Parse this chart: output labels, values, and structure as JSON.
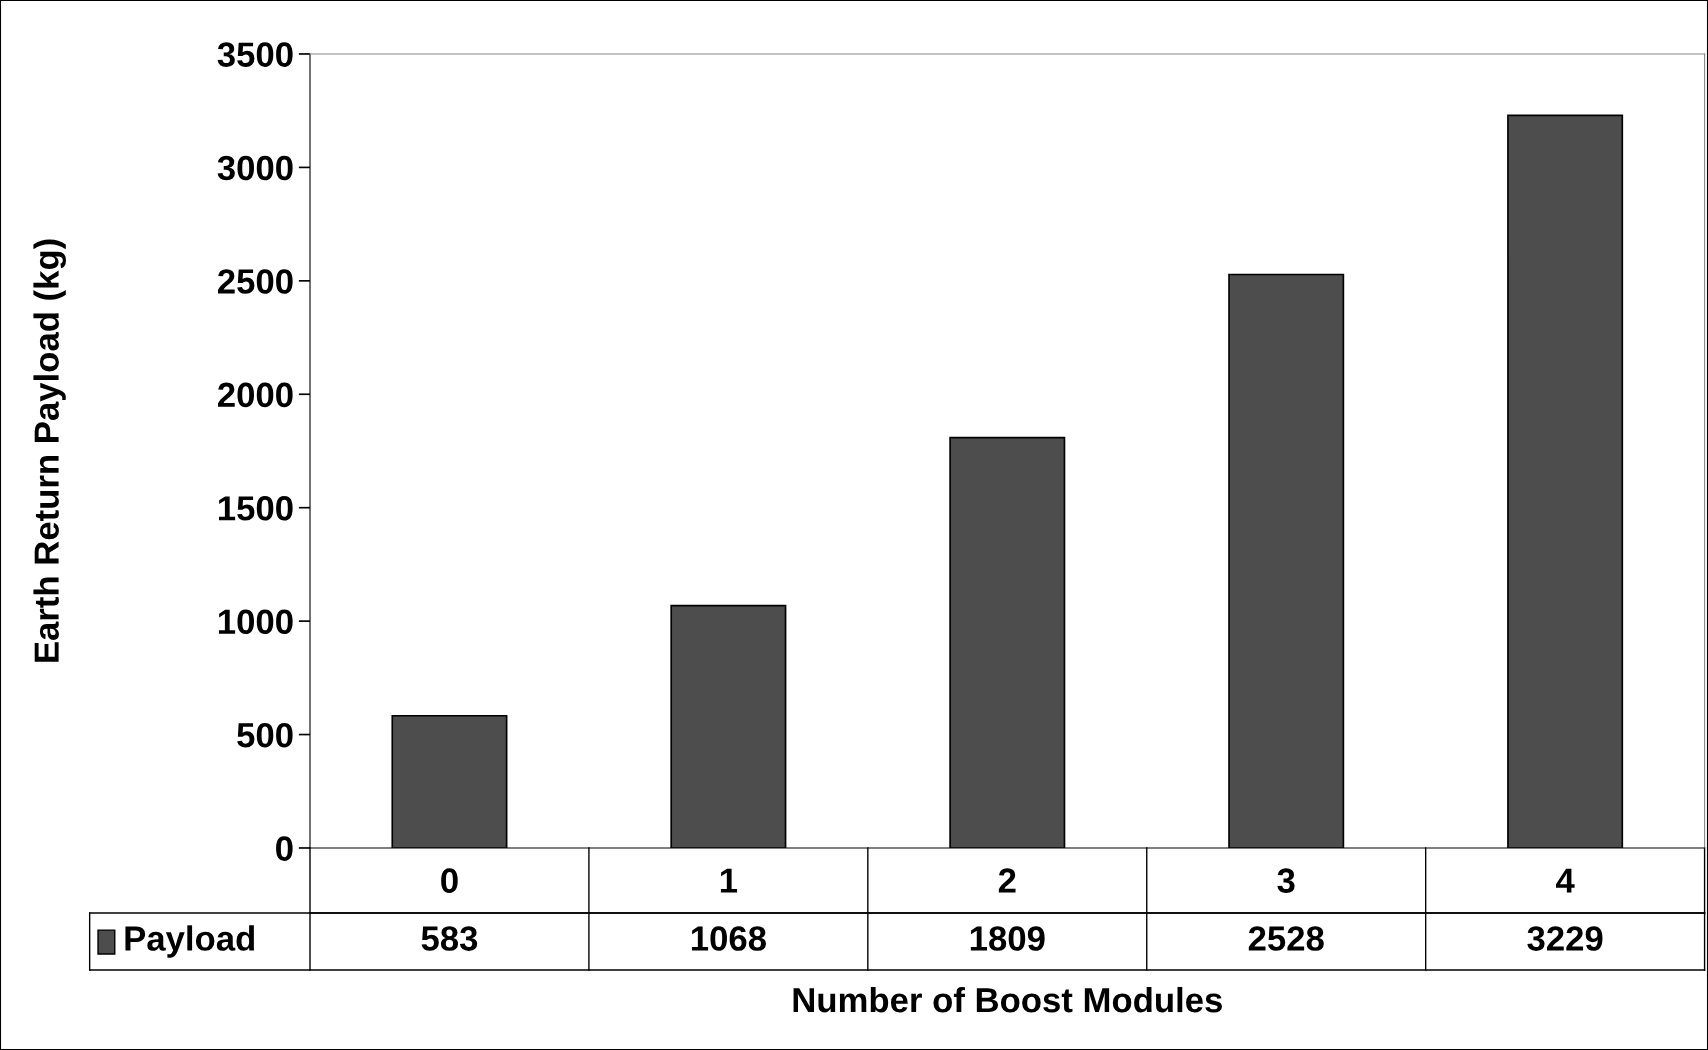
{
  "chart_data": {
    "type": "bar",
    "xlabel": "Number of Boost Modules",
    "ylabel": "Earth Return Payload (kg)",
    "categories": [
      "0",
      "1",
      "2",
      "3",
      "4"
    ],
    "series": [
      {
        "name": "Payload",
        "color": "#4d4d4d",
        "values": [
          583,
          1068,
          1809,
          2528,
          3229
        ]
      }
    ],
    "ylim": [
      0,
      3500
    ],
    "yticks": [
      0,
      500,
      1000,
      1500,
      2000,
      2500,
      3000,
      3500
    ],
    "grid": false,
    "legend": "bottom left",
    "data_labels": true
  }
}
